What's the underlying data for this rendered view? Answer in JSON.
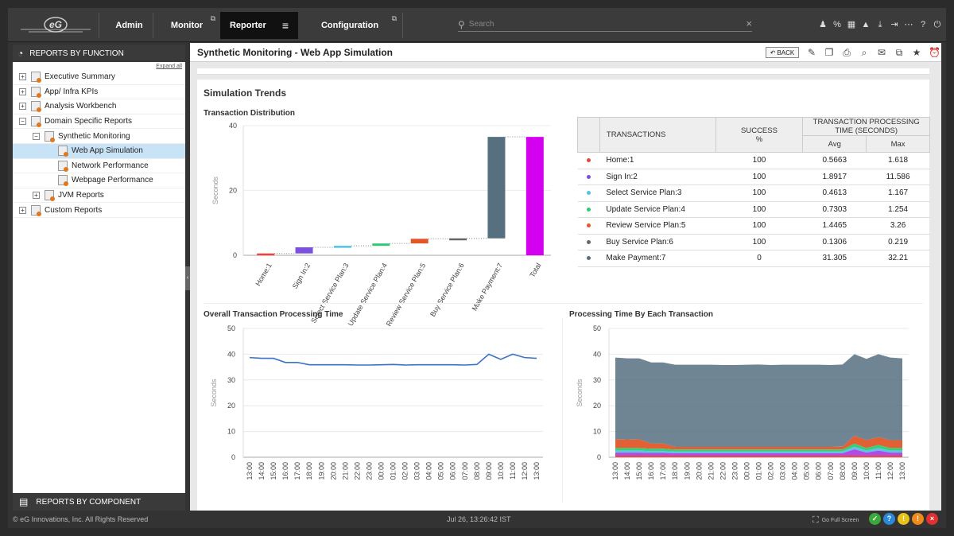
{
  "nav": {
    "items": [
      {
        "label": "Admin"
      },
      {
        "label": "Monitor"
      },
      {
        "label": "Reporter"
      },
      {
        "label": "Configuration"
      }
    ],
    "search_placeholder": "Search",
    "search_clear": "×",
    "logo_text": "eG"
  },
  "sidebar": {
    "header": "REPORTS BY FUNCTION",
    "expand_all": "Expand all",
    "items": [
      {
        "label": "Executive Summary",
        "level": 0,
        "toggle": "+"
      },
      {
        "label": "App/ Infra KPIs",
        "level": 0,
        "toggle": "+"
      },
      {
        "label": "Analysis Workbench",
        "level": 0,
        "toggle": "+"
      },
      {
        "label": "Domain Specific Reports",
        "level": 0,
        "toggle": "−"
      },
      {
        "label": "Synthetic Monitoring",
        "level": 1,
        "toggle": "−"
      },
      {
        "label": "Web App Simulation",
        "level": 2,
        "toggle": "",
        "selected": true
      },
      {
        "label": "Network Performance",
        "level": 2,
        "toggle": ""
      },
      {
        "label": "Webpage Performance",
        "level": 2,
        "toggle": ""
      },
      {
        "label": "JVM Reports",
        "level": 1,
        "toggle": "+"
      },
      {
        "label": "Custom Reports",
        "level": 0,
        "toggle": "+"
      }
    ],
    "footer": "REPORTS BY COMPONENT"
  },
  "page": {
    "title": "Synthetic Monitoring - Web App Simulation",
    "back_label": "BACK",
    "section_title": "Simulation Trends",
    "dist_title": "Transaction Distribution",
    "overall_title": "Overall Transaction Processing Time",
    "each_title": "Processing Time By Each Transaction"
  },
  "table": {
    "headers": {
      "transactions": "TRANSACTIONS",
      "success": "SUCCESS",
      "success_unit": "%",
      "time": "TRANSACTION PROCESSING TIME (SECONDS)",
      "avg": "Avg",
      "max": "Max"
    },
    "rows": [
      {
        "name": "Home:1",
        "success": "100",
        "avg": "0.5663",
        "max": "1.618",
        "color": "#e8453c"
      },
      {
        "name": "Sign In:2",
        "success": "100",
        "avg": "1.8917",
        "max": "11.586",
        "color": "#7b4fe0"
      },
      {
        "name": "Select Service Plan:3",
        "success": "100",
        "avg": "0.4613",
        "max": "1.167",
        "color": "#4fc3e8"
      },
      {
        "name": "Update Service Plan:4",
        "success": "100",
        "avg": "0.7303",
        "max": "1.254",
        "color": "#2ecc71"
      },
      {
        "name": "Review Service Plan:5",
        "success": "100",
        "avg": "1.4465",
        "max": "3.26",
        "color": "#e2572a"
      },
      {
        "name": "Buy Service Plan:6",
        "success": "100",
        "avg": "0.1306",
        "max": "0.219",
        "color": "#666666"
      },
      {
        "name": "Make Payment:7",
        "success": "0",
        "avg": "31.305",
        "max": "32.21",
        "color": "#567080"
      }
    ]
  },
  "footer": {
    "copyright": "© eG Innovations, Inc. All Rights Reserved",
    "datetime": "Jul 26, 13:26:42 IST",
    "fullscreen": "Go Full Screen",
    "status_icons": [
      {
        "glyph": "✓",
        "color": "#3aa83a"
      },
      {
        "glyph": "?",
        "color": "#2a8ad8"
      },
      {
        "glyph": "!",
        "color": "#e8c21a"
      },
      {
        "glyph": "!",
        "color": "#f08a1c"
      },
      {
        "glyph": "×",
        "color": "#e03030"
      }
    ]
  },
  "chart_data": [
    {
      "type": "bar",
      "subtype": "waterfall",
      "ylabel": "Seconds",
      "ylim": [
        0,
        40
      ],
      "yticks": [
        0,
        20,
        40
      ],
      "categories": [
        "Home:1",
        "Sign In:2",
        "Select Service Plan:3",
        "Update Service Plan:4",
        "Review Service Plan:5",
        "Buy Service Plan:6",
        "Make Payment:7",
        "Total"
      ],
      "values": [
        0.5663,
        1.8917,
        0.4613,
        0.7303,
        1.4465,
        0.1306,
        31.305,
        36.53
      ],
      "colors": [
        "#e8453c",
        "#7b4fe0",
        "#4fc3e8",
        "#2ecc71",
        "#e2572a",
        "#666666",
        "#567080",
        "#d400f0"
      ]
    },
    {
      "type": "line",
      "ylabel": "Seconds",
      "ylim": [
        0,
        50
      ],
      "yticks": [
        0,
        10,
        20,
        30,
        40,
        50
      ],
      "x": [
        "13:00",
        "14:00",
        "15:00",
        "16:00",
        "17:00",
        "18:00",
        "19:00",
        "20:00",
        "21:00",
        "22:00",
        "23:00",
        "00:00",
        "01:00",
        "02:00",
        "03:00",
        "04:00",
        "05:00",
        "06:00",
        "07:00",
        "08:00",
        "09:00",
        "10:00",
        "11:00",
        "12:00",
        "13:00"
      ],
      "series": [
        {
          "values": [
            38.7,
            38.4,
            38.4,
            36.8,
            36.8,
            35.9,
            35.9,
            35.9,
            35.9,
            35.8,
            35.8,
            35.9,
            36.0,
            35.8,
            35.9,
            35.9,
            35.9,
            35.9,
            35.8,
            36.0,
            40.0,
            38.0,
            40.0,
            38.7,
            38.4
          ],
          "color": "#3a72c8"
        }
      ]
    },
    {
      "type": "area",
      "stacked": true,
      "ylabel": "Seconds",
      "ylim": [
        0,
        50
      ],
      "yticks": [
        0,
        10,
        20,
        30,
        40,
        50
      ],
      "x": [
        "13:00",
        "14:00",
        "15:00",
        "16:00",
        "17:00",
        "18:00",
        "19:00",
        "20:00",
        "21:00",
        "22:00",
        "23:00",
        "00:00",
        "01:00",
        "02:00",
        "03:00",
        "04:00",
        "05:00",
        "06:00",
        "07:00",
        "08:00",
        "09:00",
        "10:00",
        "11:00",
        "12:00",
        "13:00"
      ],
      "series": [
        {
          "name": "Home:1",
          "color": "#e8453c",
          "values": [
            0.6,
            0.6,
            0.6,
            0.6,
            0.6,
            0.6,
            0.6,
            0.6,
            0.6,
            0.6,
            0.6,
            0.6,
            0.6,
            0.6,
            0.6,
            0.6,
            0.6,
            0.6,
            0.6,
            0.6,
            0.6,
            0.6,
            0.6,
            0.6,
            0.6
          ]
        },
        {
          "name": "Sign In:2",
          "color": "#b040e0",
          "values": [
            1.2,
            1.2,
            1.2,
            1.1,
            1.1,
            1.0,
            1.0,
            1.0,
            1.0,
            1.0,
            1.0,
            1.0,
            1.0,
            1.0,
            1.0,
            1.0,
            1.0,
            1.0,
            1.0,
            1.0,
            2.5,
            1.2,
            2.0,
            1.2,
            1.2
          ]
        },
        {
          "name": "Select Service Plan:3",
          "color": "#4fc3e8",
          "values": [
            0.8,
            0.8,
            0.8,
            0.7,
            0.7,
            0.6,
            0.6,
            0.6,
            0.6,
            0.6,
            0.6,
            0.6,
            0.6,
            0.6,
            0.6,
            0.6,
            0.6,
            0.6,
            0.6,
            0.6,
            1.0,
            0.8,
            1.0,
            0.8,
            0.8
          ]
        },
        {
          "name": "Update Service Plan:4",
          "color": "#2ecc71",
          "values": [
            1.0,
            1.0,
            1.0,
            0.9,
            0.9,
            0.8,
            0.8,
            0.8,
            0.8,
            0.8,
            0.8,
            0.8,
            0.8,
            0.8,
            0.8,
            0.8,
            0.8,
            0.8,
            0.8,
            0.8,
            1.2,
            1.0,
            1.2,
            1.0,
            1.0
          ]
        },
        {
          "name": "Review Service Plan:5",
          "color": "#e2572a",
          "values": [
            3.3,
            3.2,
            3.3,
            2.0,
            2.0,
            1.0,
            1.0,
            1.0,
            1.0,
            1.0,
            1.0,
            1.0,
            1.0,
            1.0,
            1.0,
            1.0,
            1.0,
            1.0,
            1.0,
            1.1,
            3.0,
            3.0,
            3.0,
            3.0,
            3.0
          ]
        },
        {
          "name": "Buy Service Plan:6",
          "color": "#666666",
          "values": [
            0.2,
            0.2,
            0.2,
            0.2,
            0.2,
            0.2,
            0.2,
            0.2,
            0.2,
            0.2,
            0.2,
            0.2,
            0.2,
            0.2,
            0.2,
            0.2,
            0.2,
            0.2,
            0.2,
            0.2,
            0.2,
            0.2,
            0.2,
            0.2,
            0.2
          ]
        },
        {
          "name": "Make Payment:7",
          "color": "#567080",
          "values": [
            31.6,
            31.4,
            31.3,
            31.3,
            31.3,
            31.7,
            31.7,
            31.7,
            31.7,
            31.6,
            31.6,
            31.7,
            31.8,
            31.6,
            31.7,
            31.7,
            31.7,
            31.7,
            31.6,
            31.7,
            31.5,
            31.4,
            32.0,
            31.9,
            31.6
          ]
        }
      ]
    }
  ]
}
